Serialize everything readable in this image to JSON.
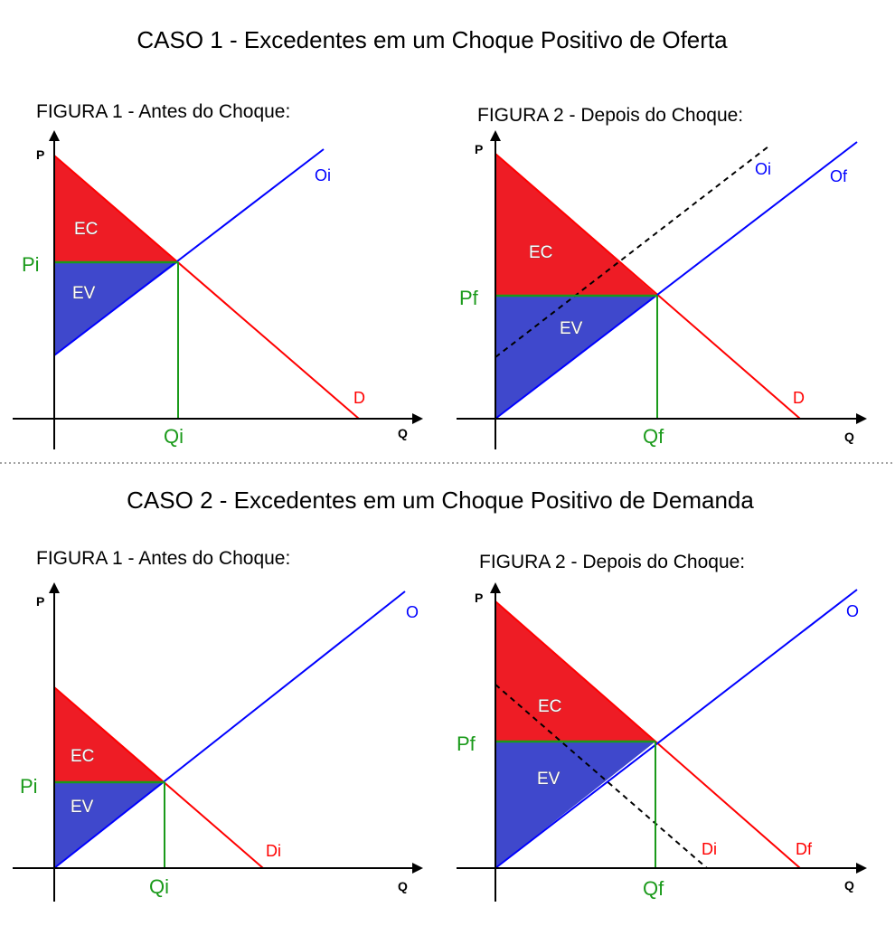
{
  "cases": [
    {
      "title": "CASO 1 - Excedentes em um Choque Positivo de Oferta",
      "figures": [
        {
          "title": "FIGURA 1 - Antes do Choque:",
          "axis_p": "P",
          "axis_q": "Q",
          "area_top": "EC",
          "area_bottom": "EV",
          "price": "Pi",
          "quantity": "Qi",
          "curve_supply": "Oi",
          "curve_demand": "D"
        },
        {
          "title": "FIGURA 2 - Depois do Choque:",
          "axis_p": "P",
          "axis_q": "Q",
          "area_top": "EC",
          "area_bottom": "EV",
          "price": "Pf",
          "quantity": "Qf",
          "curve_old": "Oi",
          "curve_supply": "Of",
          "curve_demand": "D"
        }
      ]
    },
    {
      "title": "CASO 2 - Excedentes em um Choque Positivo de Demanda",
      "figures": [
        {
          "title": "FIGURA 1 - Antes do Choque:",
          "axis_p": "P",
          "axis_q": "Q",
          "area_top": "EC",
          "area_bottom": "EV",
          "price": "Pi",
          "quantity": "Qi",
          "curve_supply": "O",
          "curve_demand": "Di"
        },
        {
          "title": "FIGURA 2 - Depois do Choque:",
          "axis_p": "P",
          "axis_q": "Q",
          "area_top": "EC",
          "area_bottom": "EV",
          "price": "Pf",
          "quantity": "Qf",
          "curve_supply": "O",
          "curve_old": "Di",
          "curve_demand": "Df"
        }
      ]
    }
  ],
  "colors": {
    "consumer_surplus": "#ee1c25",
    "producer_surplus": "#3f48cc",
    "supply": "#0000ff",
    "demand": "#ff0000",
    "equilibrium": "#1a9a1a",
    "axis": "#000000"
  }
}
